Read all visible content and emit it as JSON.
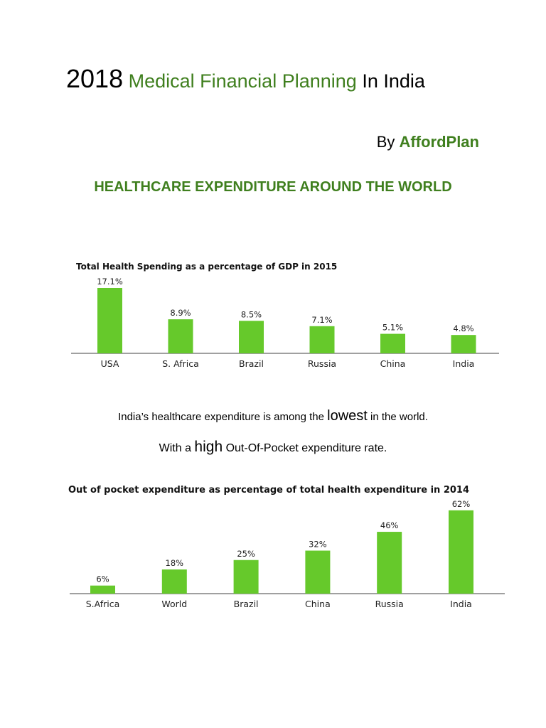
{
  "title": {
    "year": "2018",
    "highlight": "Medical Financial Planning",
    "rest": "In India"
  },
  "byline": {
    "by": "By",
    "brand": "AffordPlan"
  },
  "section_heading": "HEALTHCARE EXPENDITURE AROUND THE WORLD",
  "paragraph1": {
    "before": "India’s healthcare expenditure is among the",
    "emph": "lowest",
    "after": "in the world."
  },
  "paragraph2": {
    "before": "With a",
    "emph": "high",
    "after": "Out-Of-Pocket expenditure rate."
  },
  "colors": {
    "bar": "#66c92b",
    "accent": "#3f7f1e",
    "axis": "#a0a0a0"
  },
  "chart_data": [
    {
      "type": "bar",
      "title": "Total Health Spending as a percentage of GDP in 2015",
      "categories": [
        "USA",
        "S. Africa",
        "Brazil",
        "Russia",
        "China",
        "India"
      ],
      "values": [
        17.1,
        8.9,
        8.5,
        7.1,
        5.1,
        4.8
      ],
      "data_labels": [
        "17.1%",
        "8.9%",
        "8.5%",
        "7.1%",
        "5.1%",
        "4.8%"
      ],
      "xlabel": "",
      "ylabel": "",
      "grid": false
    },
    {
      "type": "bar",
      "title": "Out of pocket expenditure as percentage of total health expenditure in 2014",
      "categories": [
        "S.Africa",
        "World",
        "Brazil",
        "China",
        "Russia",
        "India"
      ],
      "values": [
        6,
        18,
        25,
        32,
        46,
        62
      ],
      "data_labels": [
        "6%",
        "18%",
        "25%",
        "32%",
        "46%",
        "62%"
      ],
      "xlabel": "",
      "ylabel": "",
      "grid": false
    }
  ]
}
